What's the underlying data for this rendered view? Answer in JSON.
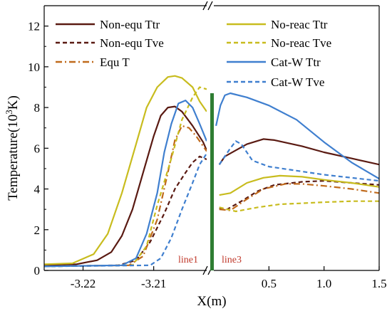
{
  "chart_data": {
    "type": "line",
    "xlabel": "X(m)",
    "ylabel": "Temperature(10",
    "ylabel_sup": "3",
    "ylabel_end": "K)",
    "ylim": [
      0,
      13
    ],
    "yticks": [
      0,
      2,
      4,
      6,
      8,
      10,
      12
    ],
    "grid": false,
    "legend_placement": "top (two columns)",
    "left_panel": {
      "xlim": [
        -3.2255,
        -3.2025
      ],
      "xticks": [
        -3.22,
        -3.21
      ],
      "xtick_labels": [
        "-3.22",
        "-3.21"
      ]
    },
    "right_panel": {
      "xlim": [
        0,
        1.5
      ],
      "xticks": [
        0.5,
        1.0,
        1.5
      ],
      "xtick_labels": [
        "0.5",
        "1.0",
        "1.5"
      ]
    },
    "series": [
      {
        "name": "Non-equ Ttr",
        "color": "#5a1a12",
        "dash": "solid",
        "left": [
          [
            -3.2255,
            0.25
          ],
          [
            -3.221,
            0.3
          ],
          [
            -3.218,
            0.5
          ],
          [
            -3.216,
            0.9
          ],
          [
            -3.2145,
            1.7
          ],
          [
            -3.213,
            3.0
          ],
          [
            -3.2115,
            4.8
          ],
          [
            -3.21,
            6.6
          ],
          [
            -3.209,
            7.6
          ],
          [
            -3.208,
            8.0
          ],
          [
            -3.207,
            8.05
          ],
          [
            -3.206,
            7.8
          ],
          [
            -3.2045,
            7.1
          ],
          [
            -3.203,
            6.3
          ],
          [
            -3.2025,
            5.9
          ]
        ],
        "right": [
          [
            0.05,
            5.2
          ],
          [
            0.1,
            5.6
          ],
          [
            0.2,
            5.9
          ],
          [
            0.3,
            6.2
          ],
          [
            0.45,
            6.45
          ],
          [
            0.55,
            6.4
          ],
          [
            0.8,
            6.1
          ],
          [
            1.0,
            5.8
          ],
          [
            1.25,
            5.5
          ],
          [
            1.5,
            5.2
          ]
        ]
      },
      {
        "name": "Non-equ Tve",
        "color": "#5a1a12",
        "dash": "dash",
        "left": [
          [
            -3.2255,
            0.2
          ],
          [
            -3.215,
            0.25
          ],
          [
            -3.2125,
            0.5
          ],
          [
            -3.2105,
            1.4
          ],
          [
            -3.2085,
            2.8
          ],
          [
            -3.207,
            4.0
          ],
          [
            -3.2055,
            4.8
          ],
          [
            -3.2045,
            5.3
          ],
          [
            -3.2035,
            5.6
          ],
          [
            -3.2025,
            5.45
          ]
        ],
        "right": [
          [
            0.05,
            3.05
          ],
          [
            0.12,
            3.0
          ],
          [
            0.25,
            3.4
          ],
          [
            0.4,
            3.9
          ],
          [
            0.55,
            4.2
          ],
          [
            0.8,
            4.35
          ],
          [
            1.0,
            4.4
          ],
          [
            1.25,
            4.3
          ],
          [
            1.5,
            4.2
          ]
        ]
      },
      {
        "name": "Equ T",
        "color": "#c06a1c",
        "dash": "dashdot",
        "left": [
          [
            -3.2255,
            0.2
          ],
          [
            -3.2135,
            0.25
          ],
          [
            -3.2115,
            0.7
          ],
          [
            -3.2095,
            2.5
          ],
          [
            -3.208,
            4.8
          ],
          [
            -3.207,
            6.4
          ],
          [
            -3.206,
            7.1
          ],
          [
            -3.205,
            7.0
          ],
          [
            -3.204,
            6.6
          ],
          [
            -3.2025,
            5.85
          ]
        ],
        "right": [
          [
            0.05,
            3.0
          ],
          [
            0.15,
            2.95
          ],
          [
            0.3,
            3.5
          ],
          [
            0.45,
            4.0
          ],
          [
            0.65,
            4.25
          ],
          [
            0.8,
            4.25
          ],
          [
            1.0,
            4.15
          ],
          [
            1.25,
            4.0
          ],
          [
            1.5,
            3.8
          ]
        ]
      },
      {
        "name": "No-reac Ttr",
        "color": "#c8bc1e",
        "dash": "solid",
        "left": [
          [
            -3.2255,
            0.3
          ],
          [
            -3.2215,
            0.35
          ],
          [
            -3.2185,
            0.8
          ],
          [
            -3.2165,
            1.8
          ],
          [
            -3.2145,
            3.8
          ],
          [
            -3.2125,
            6.2
          ],
          [
            -3.211,
            8.0
          ],
          [
            -3.2095,
            9.0
          ],
          [
            -3.208,
            9.5
          ],
          [
            -3.207,
            9.55
          ],
          [
            -3.206,
            9.45
          ],
          [
            -3.2045,
            9.0
          ],
          [
            -3.2035,
            8.3
          ],
          [
            -3.2025,
            7.8
          ]
        ],
        "right": [
          [
            0.05,
            3.7
          ],
          [
            0.15,
            3.8
          ],
          [
            0.3,
            4.3
          ],
          [
            0.45,
            4.55
          ],
          [
            0.6,
            4.65
          ],
          [
            0.8,
            4.6
          ],
          [
            1.0,
            4.45
          ],
          [
            1.25,
            4.3
          ],
          [
            1.5,
            4.1
          ]
        ]
      },
      {
        "name": "No-reac Tve",
        "color": "#c8bc1e",
        "dash": "dash",
        "left": [
          [
            -3.2255,
            0.2
          ],
          [
            -3.213,
            0.25
          ],
          [
            -3.211,
            1.2
          ],
          [
            -3.2095,
            3.2
          ],
          [
            -3.2075,
            5.5
          ],
          [
            -3.206,
            7.4
          ],
          [
            -3.2045,
            8.5
          ],
          [
            -3.2035,
            9.0
          ],
          [
            -3.2025,
            8.9
          ]
        ],
        "right": [
          [
            0.05,
            3.1
          ],
          [
            0.2,
            2.9
          ],
          [
            0.4,
            3.1
          ],
          [
            0.6,
            3.25
          ],
          [
            0.8,
            3.3
          ],
          [
            1.0,
            3.35
          ],
          [
            1.25,
            3.4
          ],
          [
            1.5,
            3.4
          ]
        ]
      },
      {
        "name": "Cat-W Ttr",
        "color": "#3f7fcf",
        "dash": "solid",
        "left": [
          [
            -3.2255,
            0.2
          ],
          [
            -3.2145,
            0.25
          ],
          [
            -3.2125,
            0.6
          ],
          [
            -3.211,
            1.8
          ],
          [
            -3.2095,
            3.8
          ],
          [
            -3.2085,
            5.8
          ],
          [
            -3.2075,
            7.2
          ],
          [
            -3.2065,
            8.2
          ],
          [
            -3.2055,
            8.35
          ],
          [
            -3.2045,
            8.0
          ],
          [
            -3.2035,
            7.2
          ],
          [
            -3.2025,
            6.35
          ]
        ],
        "right": [
          [
            0.02,
            7.1
          ],
          [
            0.06,
            8.1
          ],
          [
            0.1,
            8.6
          ],
          [
            0.15,
            8.7
          ],
          [
            0.3,
            8.5
          ],
          [
            0.5,
            8.1
          ],
          [
            0.75,
            7.4
          ],
          [
            1.0,
            6.3
          ],
          [
            1.25,
            5.3
          ],
          [
            1.5,
            4.5
          ]
        ]
      },
      {
        "name": "Cat-W Tve",
        "color": "#3f7fcf",
        "dash": "dash",
        "left": [
          [
            -3.2255,
            0.2
          ],
          [
            -3.2105,
            0.25
          ],
          [
            -3.209,
            0.6
          ],
          [
            -3.2075,
            1.6
          ],
          [
            -3.206,
            3.0
          ],
          [
            -3.2045,
            4.3
          ],
          [
            -3.2035,
            5.2
          ],
          [
            -3.2025,
            5.75
          ]
        ],
        "right": [
          [
            0.05,
            5.2
          ],
          [
            0.15,
            6.0
          ],
          [
            0.2,
            6.35
          ],
          [
            0.25,
            6.2
          ],
          [
            0.35,
            5.4
          ],
          [
            0.5,
            5.1
          ],
          [
            0.75,
            4.9
          ],
          [
            1.0,
            4.7
          ],
          [
            1.25,
            4.55
          ],
          [
            1.5,
            4.4
          ]
        ]
      }
    ],
    "annotations": [
      {
        "text": "line1",
        "color": "#c0392b"
      },
      {
        "text": "line3",
        "color": "#c0392b"
      }
    ],
    "divider_color": "#2e7d32"
  }
}
